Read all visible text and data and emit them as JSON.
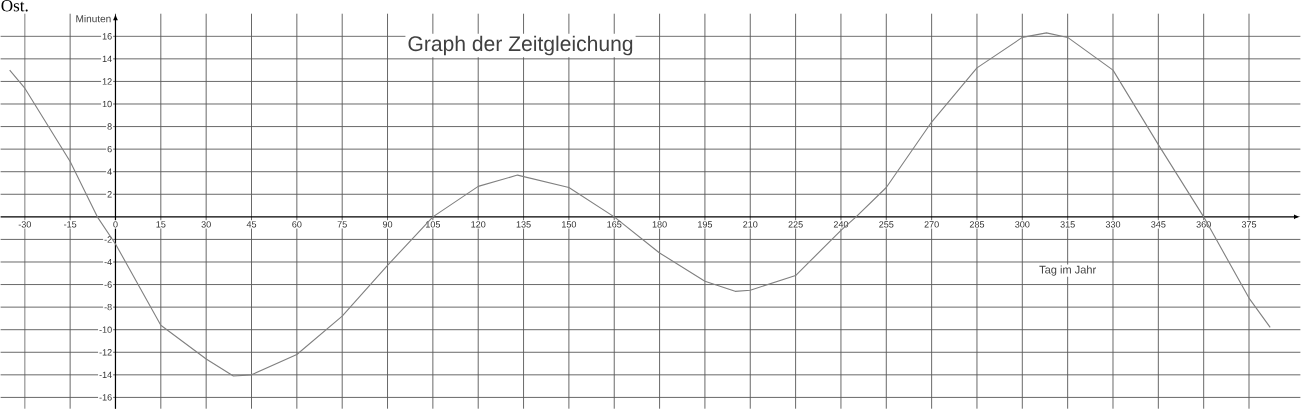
{
  "chart_data": {
    "type": "line",
    "title": "Graph der Zeitgleichung",
    "xlabel": "Tag im Jahr",
    "ylabel": "Minuten",
    "annotations": [
      "Ost."
    ],
    "x": [
      -35,
      -30,
      -15,
      -6,
      0,
      15,
      30,
      39,
      45,
      60,
      75,
      90,
      105,
      120,
      133,
      150,
      165,
      180,
      195,
      205,
      210,
      225,
      240,
      245,
      255,
      270,
      285,
      300,
      308,
      315,
      330,
      345,
      360,
      375,
      382
    ],
    "series": [
      {
        "color": "#808080",
        "values": [
          13.0,
          11.4,
          4.9,
          0,
          -2.4,
          -9.6,
          -12.6,
          -14.1,
          -14.0,
          -12.2,
          -8.8,
          -4.3,
          0,
          2.7,
          3.7,
          2.6,
          0,
          -3.2,
          -5.7,
          -6.6,
          -6.5,
          -5.2,
          -1.2,
          0,
          2.6,
          8.4,
          13.2,
          15.9,
          16.3,
          15.9,
          13.0,
          6.4,
          0,
          -7.2,
          -9.8
        ]
      }
    ],
    "xlim": [
      -38,
      392
    ],
    "ylim": [
      -17,
      18
    ],
    "xticks": [
      -30,
      -15,
      0,
      15,
      30,
      45,
      60,
      75,
      90,
      105,
      120,
      135,
      150,
      165,
      180,
      195,
      210,
      225,
      240,
      255,
      270,
      285,
      300,
      315,
      330,
      345,
      360,
      375
    ],
    "yticks": [
      -16,
      -14,
      -12,
      -10,
      -8,
      -6,
      -4,
      -2,
      2,
      4,
      6,
      8,
      10,
      12,
      14,
      16
    ],
    "grid": true
  }
}
